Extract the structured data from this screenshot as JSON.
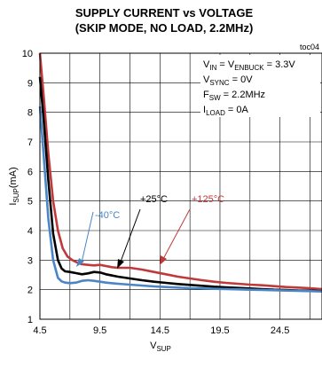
{
  "chart_data": {
    "type": "line",
    "title_line1": "SUPPLY CURRENT vs VOLTAGE",
    "title_line2": "(SKIP MODE, NO LOAD, 2.2MHz)",
    "figure_code": "toc04",
    "xlabel_main": "V",
    "xlabel_sub": "SUP",
    "ylabel_main": "I",
    "ylabel_sub": "SUP",
    "ylabel_unit": "(mA)",
    "xlim": [
      4.5,
      28.0
    ],
    "ylim": [
      1,
      10
    ],
    "xticks": [
      "4.5",
      "9.5",
      "14.5",
      "19.5",
      "24.5"
    ],
    "yticks": [
      "1",
      "2",
      "3",
      "4",
      "5",
      "6",
      "7",
      "8",
      "9",
      "10"
    ],
    "grid": true,
    "conditions": {
      "line1_a": "V",
      "line1_a_sub": "IN",
      "line1_b": " = V",
      "line1_b_sub": "ENBUCK",
      "line1_c": " = 3.3V",
      "line2_a": "V",
      "line2_a_sub": "SYNC",
      "line2_c": " = 0V",
      "line3_a": "F",
      "line3_a_sub": "SW",
      "line3_c": " = 2.2MHz",
      "line4_a": "I",
      "line4_a_sub": "LOAD",
      "line4_c": " = 0A"
    },
    "series": [
      {
        "name": "+125°C",
        "color": "#c0393b",
        "x": [
          4.5,
          4.8,
          5.2,
          5.6,
          6.0,
          6.4,
          6.8,
          7.2,
          7.6,
          8.0,
          8.5,
          9.0,
          9.5,
          10.0,
          10.5,
          11.0,
          12.0,
          13.0,
          14.0,
          15.0,
          16.0,
          17.0,
          18.0,
          19.0,
          20.0,
          21.0,
          22.0,
          23.0,
          24.0,
          25.0,
          26.0,
          27.0,
          28.0
        ],
        "values": [
          10.0,
          8.6,
          6.6,
          5.0,
          4.0,
          3.4,
          3.12,
          3.0,
          2.92,
          2.86,
          2.84,
          2.82,
          2.84,
          2.8,
          2.76,
          2.74,
          2.74,
          2.68,
          2.6,
          2.52,
          2.44,
          2.38,
          2.32,
          2.27,
          2.23,
          2.2,
          2.17,
          2.15,
          2.12,
          2.09,
          2.07,
          2.05,
          2.02
        ]
      },
      {
        "name": "+25°C",
        "color": "#000000",
        "x": [
          4.5,
          4.8,
          5.2,
          5.6,
          6.0,
          6.3,
          6.6,
          7.0,
          7.5,
          8.0,
          8.5,
          9.0,
          9.5,
          10.0,
          11.0,
          12.0,
          13.0,
          14.0,
          15.0,
          16.0,
          17.0,
          18.0,
          19.0,
          20.0,
          21.0,
          22.0,
          23.0,
          24.0,
          25.0,
          26.0,
          27.0,
          28.0
        ],
        "values": [
          9.2,
          7.8,
          5.7,
          3.9,
          3.0,
          2.72,
          2.62,
          2.6,
          2.56,
          2.52,
          2.55,
          2.6,
          2.58,
          2.52,
          2.44,
          2.38,
          2.32,
          2.27,
          2.23,
          2.19,
          2.16,
          2.13,
          2.1,
          2.08,
          2.06,
          2.04,
          2.02,
          2.0,
          1.99,
          1.97,
          1.96,
          1.95
        ]
      },
      {
        "name": "-40°C",
        "color": "#4a86c6",
        "x": [
          4.5,
          4.8,
          5.2,
          5.6,
          6.0,
          6.3,
          6.6,
          7.0,
          7.5,
          8.0,
          8.5,
          9.0,
          9.5,
          10.0,
          11.0,
          12.0,
          13.0,
          14.0,
          15.0,
          16.0,
          17.0,
          18.0,
          19.0,
          20.0,
          21.0,
          22.0,
          23.0,
          24.0,
          25.0,
          26.0,
          27.0,
          28.0
        ],
        "values": [
          8.2,
          6.6,
          4.4,
          3.0,
          2.4,
          2.28,
          2.24,
          2.22,
          2.24,
          2.3,
          2.32,
          2.3,
          2.27,
          2.24,
          2.2,
          2.17,
          2.14,
          2.11,
          2.09,
          2.07,
          2.05,
          2.04,
          2.03,
          2.02,
          2.01,
          2.0,
          1.99,
          1.98,
          1.97,
          1.96,
          1.95,
          1.94
        ]
      }
    ]
  }
}
